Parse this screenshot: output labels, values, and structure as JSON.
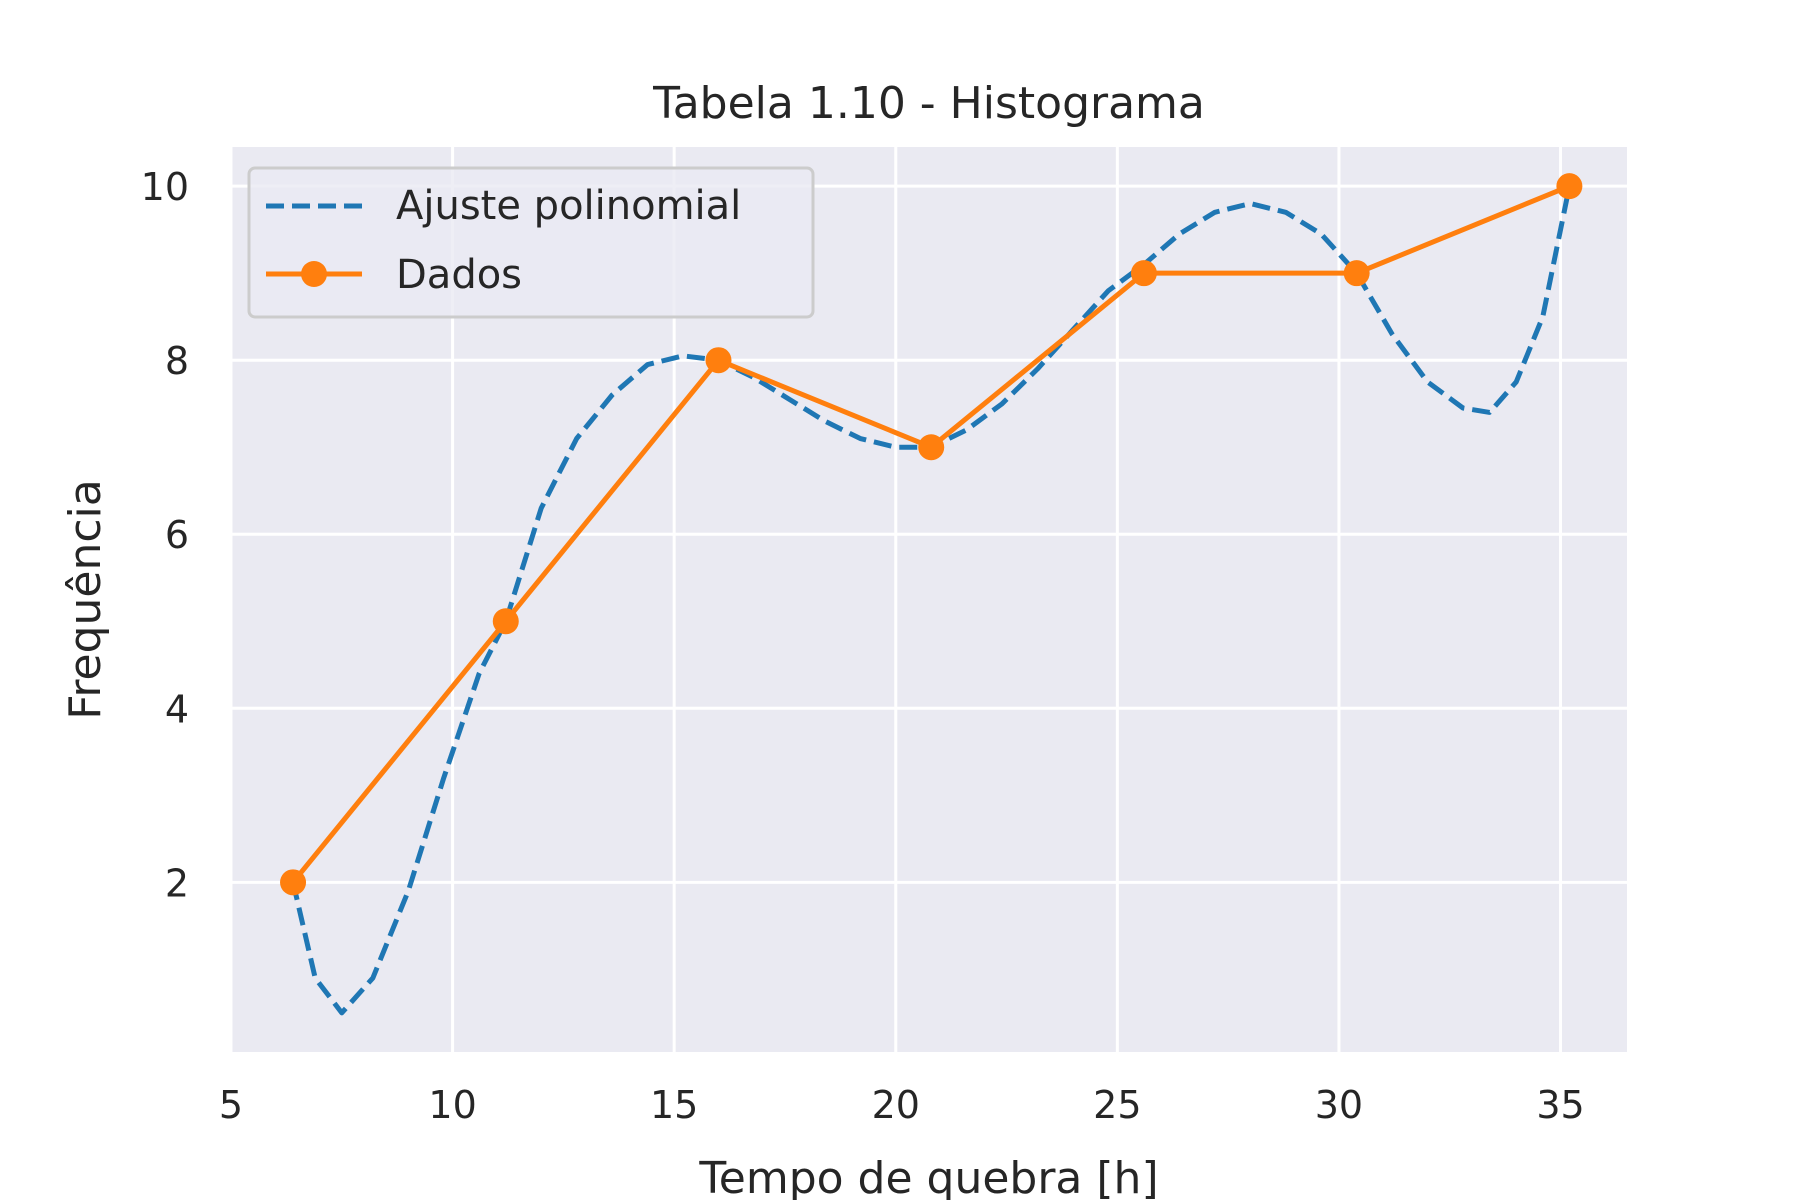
{
  "chart_data": {
    "type": "line",
    "title": "Tabela 1.10 - Histograma",
    "xlabel": "Tempo de quebra [h]",
    "ylabel": "Frequência",
    "xlim": [
      5,
      36.5
    ],
    "ylim": [
      0.05,
      10.45
    ],
    "xticks": [
      5,
      10,
      15,
      20,
      25,
      30,
      35
    ],
    "yticks": [
      2,
      4,
      6,
      8,
      10
    ],
    "grid": true,
    "legend_position": "top-left",
    "series": [
      {
        "name": "Ajuste polinomial",
        "style": "dashed",
        "color": "#1f77b4",
        "x": [
          6.4,
          6.9,
          7.5,
          8.2,
          9.0,
          9.8,
          10.6,
          11.2,
          12.0,
          12.8,
          13.6,
          14.4,
          15.2,
          16.0,
          16.8,
          17.6,
          18.4,
          19.2,
          20.0,
          20.8,
          21.6,
          22.4,
          23.2,
          24.0,
          24.8,
          25.6,
          26.4,
          27.2,
          28.0,
          28.8,
          29.6,
          30.4,
          31.2,
          32.0,
          32.8,
          33.4,
          34.0,
          34.6,
          35.2
        ],
        "y": [
          2.0,
          0.9,
          0.5,
          0.9,
          1.9,
          3.2,
          4.4,
          5.0,
          6.3,
          7.1,
          7.6,
          7.95,
          8.05,
          8.0,
          7.8,
          7.55,
          7.3,
          7.1,
          7.0,
          7.0,
          7.2,
          7.5,
          7.9,
          8.35,
          8.8,
          9.1,
          9.45,
          9.7,
          9.8,
          9.7,
          9.45,
          9.0,
          8.3,
          7.75,
          7.45,
          7.4,
          7.75,
          8.5,
          10.0
        ]
      },
      {
        "name": "Dados",
        "style": "solid-marker",
        "color": "#ff7f0e",
        "x": [
          6.4,
          11.2,
          16.0,
          20.8,
          25.6,
          30.4,
          35.2
        ],
        "y": [
          2,
          5,
          8,
          7,
          9,
          9,
          10
        ]
      }
    ]
  }
}
